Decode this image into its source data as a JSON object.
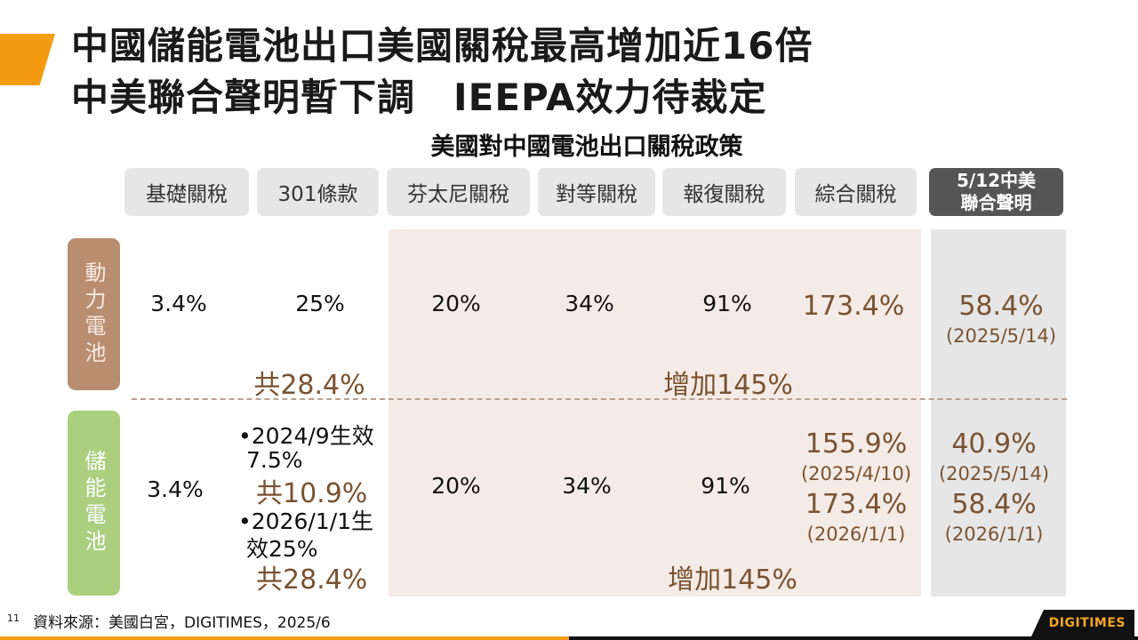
{
  "title": {
    "line1": "中國儲能電池出口美國關稅最高增加近16倍",
    "line2": "中美聯合聲明暫下調　IEEPA效力待裁定"
  },
  "subtitle": "美國對中國電池出口關稅政策",
  "headers": [
    "基礎關稅",
    "301條款",
    "芬太尼關稅",
    "對等關稅",
    "報復關稅",
    "綜合關稅"
  ],
  "header_last": {
    "line1": "5/12中美",
    "line2": "聯合聲明"
  },
  "rows": {
    "power": {
      "label": "動力電池",
      "base": "3.4%",
      "s301": "25%",
      "fentanyl": "20%",
      "reciprocal": "34%",
      "retaliatory": "91%",
      "combined": "173.4%",
      "joint": "58.4%",
      "joint_date": "(2025/5/14)",
      "sum_left": "共28.4%",
      "sum_right": "增加145%"
    },
    "storage": {
      "label": "儲能電池",
      "base": "3.4%",
      "s301_a1": "•2024/9生效",
      "s301_a2": "7.5%",
      "s301_a_sum": "共10.9%",
      "s301_b1": "•2026/1/1生",
      "s301_b2": "效25%",
      "sum_left": "共28.4%",
      "fentanyl": "20%",
      "reciprocal": "34%",
      "retaliatory": "91%",
      "combined_1": "155.9%",
      "combined_1_date": "(2025/4/10)",
      "combined_2": "173.4%",
      "combined_2_date": "(2026/1/1)",
      "joint_1": "40.9%",
      "joint_1_date": "(2025/5/14)",
      "joint_2": "58.4%",
      "joint_2_date": "(2026/1/1)",
      "sum_right": "增加145%"
    }
  },
  "footer": {
    "page": "11",
    "source": "資料來源：美國白宮，DIGITIMES，2025/6"
  },
  "logo": "DIGITIMES",
  "colors": {
    "accent": "#f39c12",
    "power_label": "#b98e70",
    "storage_label": "#a9cf7f",
    "highlight_text": "#7a5230"
  }
}
